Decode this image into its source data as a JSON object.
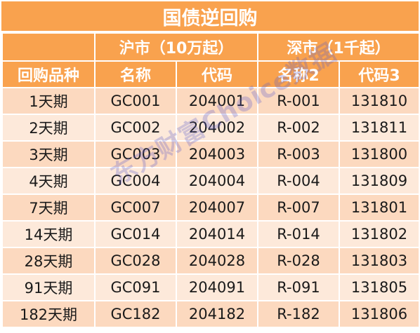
{
  "title": "国债逆回购",
  "groups": {
    "shanghai": "沪市（10万起）",
    "shenzhen": "深市（1千起）"
  },
  "columns": [
    "回购品种",
    "名称",
    "代码",
    "名称2",
    "代码3"
  ],
  "rows": [
    [
      "1天期",
      "GC001",
      "204001",
      "R-001",
      "131810"
    ],
    [
      "2天期",
      "GC002",
      "204002",
      "R-002",
      "131811"
    ],
    [
      "3天期",
      "GC003",
      "204003",
      "R-003",
      "131800"
    ],
    [
      "4天期",
      "GC004",
      "204004",
      "R-004",
      "131809"
    ],
    [
      "7天期",
      "GC007",
      "204007",
      "R-007",
      "131801"
    ],
    [
      "14天期",
      "GC014",
      "204014",
      "R-014",
      "131802"
    ],
    [
      "28天期",
      "GC028",
      "204028",
      "R-028",
      "131803"
    ],
    [
      "91天期",
      "GC091",
      "204091",
      "R-091",
      "131805"
    ],
    [
      "182天期",
      "GC182",
      "204182",
      "R-182",
      "131806"
    ]
  ],
  "watermark": "东方财富Choice数据",
  "colors": {
    "header": "#f9a24e",
    "row_odd": "#fcd9bf",
    "row_even": "#fde9da"
  }
}
